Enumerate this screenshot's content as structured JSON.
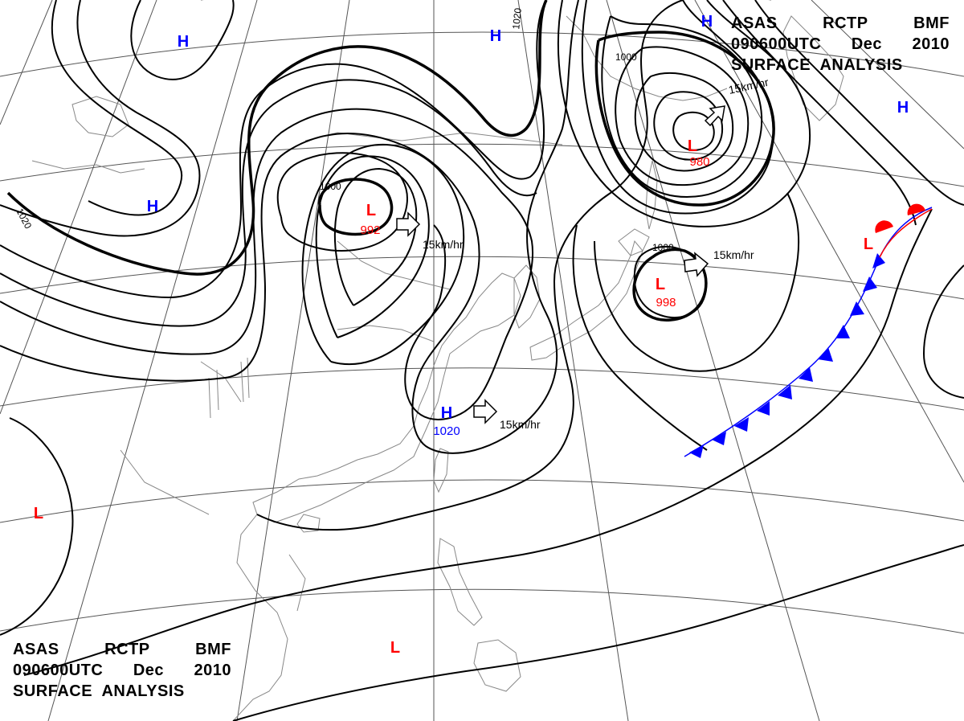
{
  "header": {
    "line1": [
      "ASAS",
      "RCTP",
      "BMF"
    ],
    "line2": [
      "090600UTC",
      "Dec",
      "2010"
    ],
    "line3": "SURFACE  ANALYSIS"
  },
  "pressure_systems": [
    {
      "id": "h1",
      "type": "H",
      "value": ""
    },
    {
      "id": "h2",
      "type": "H",
      "value": ""
    },
    {
      "id": "h3",
      "type": "H",
      "value": ""
    },
    {
      "id": "h4",
      "type": "H",
      "value": ""
    },
    {
      "id": "h5",
      "type": "H",
      "value": ""
    },
    {
      "id": "h6",
      "type": "H",
      "value": "1020"
    },
    {
      "id": "l1",
      "type": "L",
      "value": "992"
    },
    {
      "id": "l2",
      "type": "L",
      "value": "980"
    },
    {
      "id": "l3",
      "type": "L",
      "value": "998"
    },
    {
      "id": "l4",
      "type": "L",
      "value": ""
    },
    {
      "id": "l5",
      "type": "L",
      "value": ""
    },
    {
      "id": "l6",
      "type": "L",
      "value": ""
    }
  ],
  "movement_labels": [
    "15km/hr",
    "15km/hr",
    "15km/hr",
    "15km/hr"
  ],
  "isobar_labels": [
    "1020",
    "1000",
    "1000",
    "1000",
    "1020"
  ],
  "colors": {
    "high": "#0000ff",
    "low": "#ff0000",
    "isobar": "#000000",
    "grid": "#555555",
    "coast": "#888888",
    "cold_front": "#0000ff",
    "warm_front": "#ff0000"
  }
}
